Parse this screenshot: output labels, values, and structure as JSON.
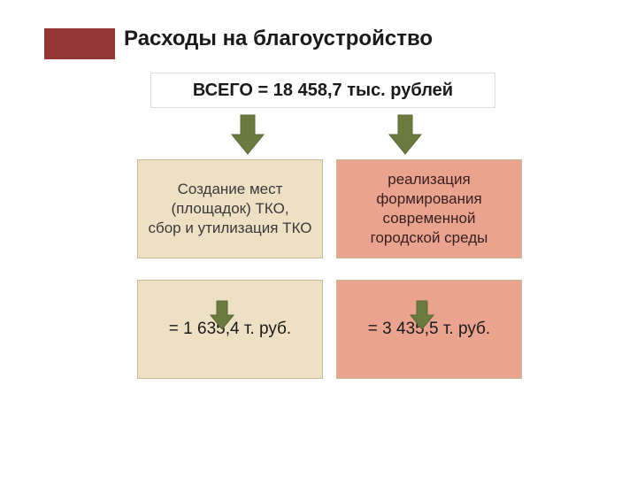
{
  "type": "infographic",
  "title": "Расходы на благоустройство",
  "accent_color": "#943634",
  "total": "ВСЕГО = 18 458,7 тыс. рублей",
  "boxes": {
    "desc_left": "Создание мест (площадок) ТКО,\nсбор и утилизация ТКО",
    "desc_right": "реализация формирования современной городской среды",
    "val_left": "=   1 635,4 т. руб.",
    "val_right": "=   3 435,5 т. руб."
  },
  "colors": {
    "box_beige": "#eee0c4",
    "box_coral": "#eaa38f",
    "arrow_fill": "#6b7a3f",
    "arrow_stroke": "#5a6834",
    "background": "#ffffff",
    "text_dark": "#1a1a1a"
  },
  "typography": {
    "title_fontsize": 24,
    "total_fontsize": 20,
    "desc_fontsize": 17,
    "value_fontsize": 19
  }
}
